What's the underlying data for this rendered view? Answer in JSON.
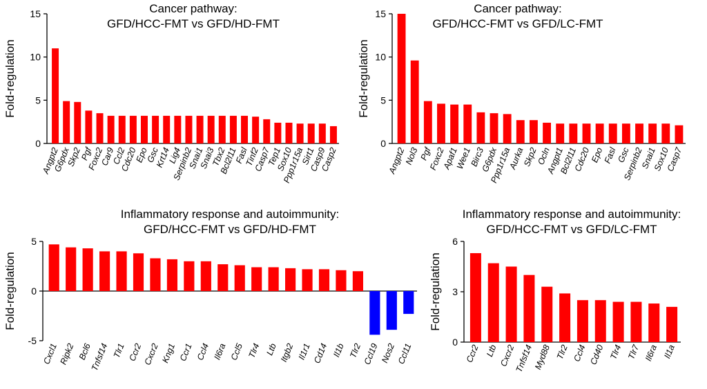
{
  "chart_data": [
    {
      "type": "bar",
      "title": [
        "Cancer pathway:",
        "GFD/HCC-FMT vs GFD/HD-FMT"
      ],
      "ylabel": "Fold-regulation",
      "ylim": [
        0,
        15
      ],
      "yticks": [
        0,
        5,
        10,
        15
      ],
      "color_up": "#ff0000",
      "color_down": "#0000ff",
      "categories": [
        "Angpt2",
        "G6pdx",
        "Skp2",
        "Pgf",
        "Foxc2",
        "Car9",
        "Ccl2",
        "Cdc20",
        "Epo",
        "Gsc",
        "Krt14",
        "Lig4",
        "Serpinb2",
        "Snai1",
        "Snai3",
        "Tbx2",
        "Bcl2l11",
        "Fasl",
        "Tinf2",
        "Casp7",
        "Tep1",
        "Sox10",
        "Ppp1r15a",
        "Sirt1",
        "Casp9",
        "Casp2"
      ],
      "values": [
        11.0,
        4.9,
        4.8,
        3.8,
        3.5,
        3.2,
        3.2,
        3.2,
        3.2,
        3.2,
        3.2,
        3.2,
        3.2,
        3.2,
        3.2,
        3.2,
        3.2,
        3.2,
        3.1,
        2.8,
        2.4,
        2.4,
        2.3,
        2.3,
        2.3,
        2.0
      ]
    },
    {
      "type": "bar",
      "title": [
        "Cancer pathway:",
        "GFD/HCC-FMT vs GFD/LC-FMT"
      ],
      "ylabel": "Fold-regulation",
      "ylim": [
        0,
        15
      ],
      "yticks": [
        0,
        5,
        10,
        15
      ],
      "color_up": "#ff0000",
      "color_down": "#0000ff",
      "categories": [
        "Angpt2",
        "Nol3",
        "Pgf",
        "Foxc2",
        "Apaf1",
        "Wee1",
        "Birc3",
        "G6pdx",
        "Ppp1r15a",
        "Aurka",
        "Skp2",
        "Ocln",
        "Angpt1",
        "Bcl2l11",
        "Cdc20",
        "Epo",
        "Fasl",
        "Gsc",
        "Serpinb2",
        "Snai1",
        "Sox10",
        "Casp7"
      ],
      "values": [
        15.0,
        9.6,
        4.9,
        4.6,
        4.5,
        4.5,
        3.6,
        3.5,
        3.4,
        2.7,
        2.7,
        2.4,
        2.3,
        2.3,
        2.3,
        2.3,
        2.3,
        2.3,
        2.3,
        2.3,
        2.3,
        2.1
      ]
    },
    {
      "type": "bar",
      "title": [
        "Inflammatory response and autoimmunity:",
        "GFD/HCC-FMT vs GFD/HD-FMT"
      ],
      "ylabel": "Fold-regulation",
      "ylim": [
        -5,
        5
      ],
      "yticks": [
        -5,
        0,
        5
      ],
      "color_up": "#ff0000",
      "color_down": "#0000ff",
      "categories": [
        "Cxcl1",
        "Ripk2",
        "Bcl6",
        "Tnfsf14",
        "Tlr1",
        "Ccr2",
        "Cxcr2",
        "Kng1",
        "Ccr1",
        "Ccl4",
        "Il6ra",
        "Ccl5",
        "Tlr4",
        "Ltb",
        "Itgb2",
        "Il1r1",
        "Cd14",
        "Il1b",
        "Tlr2",
        "Ccl19",
        "Nos2",
        "Ccl11"
      ],
      "values": [
        4.7,
        4.4,
        4.3,
        4.0,
        4.0,
        3.8,
        3.3,
        3.2,
        3.0,
        3.0,
        2.7,
        2.6,
        2.4,
        2.4,
        2.3,
        2.2,
        2.2,
        2.1,
        2.0,
        -4.4,
        -3.9,
        -2.3
      ]
    },
    {
      "type": "bar",
      "title": [
        "Inflammatory response and autoimmunity:",
        "GFD/HCC-FMT vs GFD/LC-FMT"
      ],
      "ylabel": "Fold-regulation",
      "ylim": [
        0,
        6
      ],
      "yticks": [
        0,
        3,
        6
      ],
      "color_up": "#ff0000",
      "color_down": "#0000ff",
      "categories": [
        "Ccr2",
        "Ltb",
        "Cxcr2",
        "Tnfsf14",
        "Myd88",
        "Tlr2",
        "Ccl4",
        "Cd40",
        "Tlr4",
        "Tlr7",
        "Il6ra",
        "Il1a"
      ],
      "values": [
        5.3,
        4.7,
        4.5,
        4.0,
        3.3,
        2.9,
        2.5,
        2.5,
        2.4,
        2.4,
        2.3,
        2.1
      ]
    }
  ]
}
